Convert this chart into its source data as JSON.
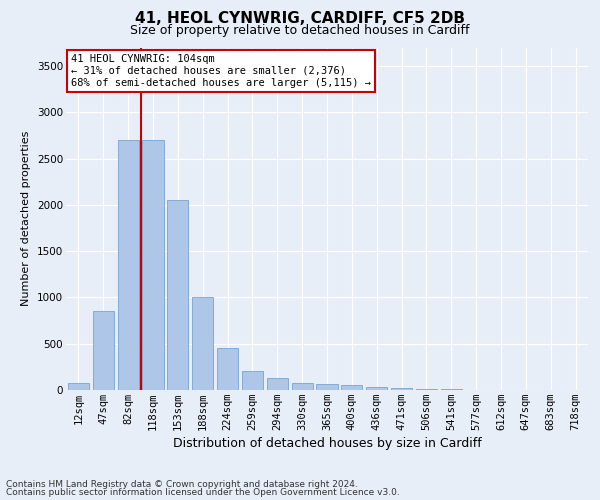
{
  "title1": "41, HEOL CYNWRIG, CARDIFF, CF5 2DB",
  "title2": "Size of property relative to detached houses in Cardiff",
  "xlabel": "Distribution of detached houses by size in Cardiff",
  "ylabel": "Number of detached properties",
  "categories": [
    "12sqm",
    "47sqm",
    "82sqm",
    "118sqm",
    "153sqm",
    "188sqm",
    "224sqm",
    "259sqm",
    "294sqm",
    "330sqm",
    "365sqm",
    "400sqm",
    "436sqm",
    "471sqm",
    "506sqm",
    "541sqm",
    "577sqm",
    "612sqm",
    "647sqm",
    "683sqm",
    "718sqm"
  ],
  "values": [
    80,
    850,
    2700,
    2700,
    2050,
    1000,
    450,
    200,
    130,
    80,
    60,
    50,
    30,
    20,
    10,
    8,
    5,
    4,
    3,
    2,
    1
  ],
  "bar_color": "#aec6e8",
  "bar_edgecolor": "#6699cc",
  "vline_color": "#cc0000",
  "vline_pos": 2.5,
  "annotation_text": "41 HEOL CYNWRIG: 104sqm\n← 31% of detached houses are smaller (2,376)\n68% of semi-detached houses are larger (5,115) →",
  "annotation_box_facecolor": "#ffffff",
  "annotation_box_edgecolor": "#cc0000",
  "ylim": [
    0,
    3700
  ],
  "yticks": [
    0,
    500,
    1000,
    1500,
    2000,
    2500,
    3000,
    3500
  ],
  "footer1": "Contains HM Land Registry data © Crown copyright and database right 2024.",
  "footer2": "Contains public sector information licensed under the Open Government Licence v3.0.",
  "background_color": "#e8eef7",
  "grid_color": "#ffffff",
  "title1_fontsize": 11,
  "title2_fontsize": 9,
  "xlabel_fontsize": 9,
  "ylabel_fontsize": 8,
  "tick_fontsize": 7.5,
  "annotation_fontsize": 7.5,
  "footer_fontsize": 6.5
}
